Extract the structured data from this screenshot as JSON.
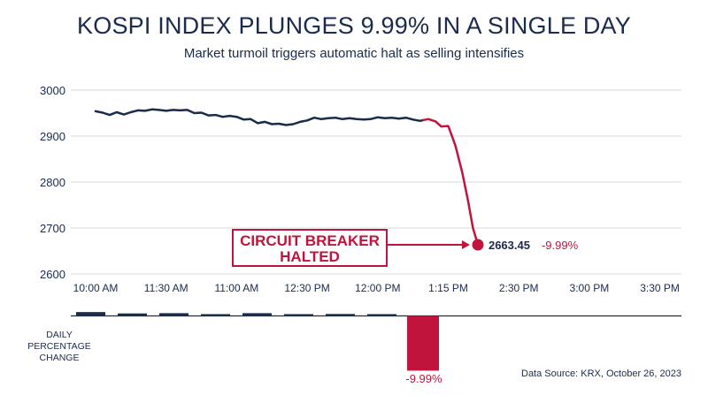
{
  "title": "KOSPI INDEX PLUNGES 9.99% IN A SINGLE DAY",
  "subtitle": "Market turmoil triggers automatic halt as selling intensifies",
  "source": "Data Source: KRX, October 26, 2023",
  "colors": {
    "navy": "#1a2b4c",
    "red": "#c0143c",
    "grid": "#d9d9d9"
  },
  "chart_data": {
    "type": "line",
    "title": "KOSPI INDEX PLUNGES 9.99% IN A SINGLE DAY",
    "subtitle": "Market turmoil triggers automatic halt as selling intensifies",
    "ylim": [
      2600,
      3000
    ],
    "yticks": [
      3000,
      2900,
      2800,
      2700,
      2600
    ],
    "xticks": [
      "10:00 AM",
      "11:30 AM",
      "11:00 AM",
      "12:30 PM",
      "12:00 PM",
      "1:15 PM",
      "2:30 PM",
      "3:00 PM",
      "3:30 PM"
    ],
    "grid": true,
    "series": [
      {
        "color": "#1a2b4c",
        "points": [
          [
            0.0,
            2954
          ],
          [
            0.1,
            2951
          ],
          [
            0.2,
            2946
          ],
          [
            0.3,
            2952
          ],
          [
            0.4,
            2947
          ],
          [
            0.5,
            2952
          ],
          [
            0.6,
            2956
          ],
          [
            0.7,
            2955
          ],
          [
            0.8,
            2958
          ],
          [
            0.9,
            2957
          ],
          [
            1.0,
            2955
          ],
          [
            1.1,
            2957
          ],
          [
            1.2,
            2956
          ],
          [
            1.3,
            2957
          ],
          [
            1.4,
            2950
          ],
          [
            1.5,
            2951
          ],
          [
            1.6,
            2945
          ],
          [
            1.7,
            2946
          ],
          [
            1.8,
            2942
          ],
          [
            1.9,
            2944
          ],
          [
            2.0,
            2942
          ],
          [
            2.1,
            2936
          ],
          [
            2.2,
            2937
          ],
          [
            2.3,
            2928
          ],
          [
            2.4,
            2931
          ],
          [
            2.5,
            2926
          ],
          [
            2.6,
            2927
          ],
          [
            2.7,
            2924
          ],
          [
            2.8,
            2926
          ],
          [
            2.9,
            2931
          ],
          [
            3.0,
            2934
          ],
          [
            3.1,
            2940
          ],
          [
            3.2,
            2937
          ],
          [
            3.3,
            2939
          ],
          [
            3.4,
            2940
          ],
          [
            3.5,
            2937
          ],
          [
            3.6,
            2939
          ],
          [
            3.7,
            2937
          ],
          [
            3.8,
            2936
          ],
          [
            3.9,
            2937
          ],
          [
            4.0,
            2941
          ],
          [
            4.1,
            2939
          ],
          [
            4.2,
            2940
          ],
          [
            4.3,
            2938
          ],
          [
            4.4,
            2940
          ],
          [
            4.5,
            2936
          ],
          [
            4.6,
            2933
          ],
          [
            4.65,
            2935
          ]
        ]
      },
      {
        "color": "#c0143c",
        "points": [
          [
            4.65,
            2935
          ],
          [
            4.72,
            2937
          ],
          [
            4.82,
            2932
          ],
          [
            4.9,
            2921
          ],
          [
            5.0,
            2922
          ],
          [
            5.1,
            2880
          ],
          [
            5.2,
            2820
          ],
          [
            5.28,
            2760
          ],
          [
            5.35,
            2700
          ],
          [
            5.42,
            2663.45
          ]
        ]
      }
    ],
    "annotation": {
      "box_text": [
        "CIRCUIT BREAKER",
        "HALTED"
      ],
      "value": "2663.45",
      "change": "-9.99%"
    },
    "daily_change": {
      "label": [
        "DAILY",
        "PERCENTAGE",
        "CHANGE"
      ],
      "values": [
        0.7,
        0.45,
        0.5,
        0.3,
        0.5,
        0.3,
        0.35,
        0.25,
        -9.99
      ],
      "last_label": "-9.99%"
    }
  }
}
